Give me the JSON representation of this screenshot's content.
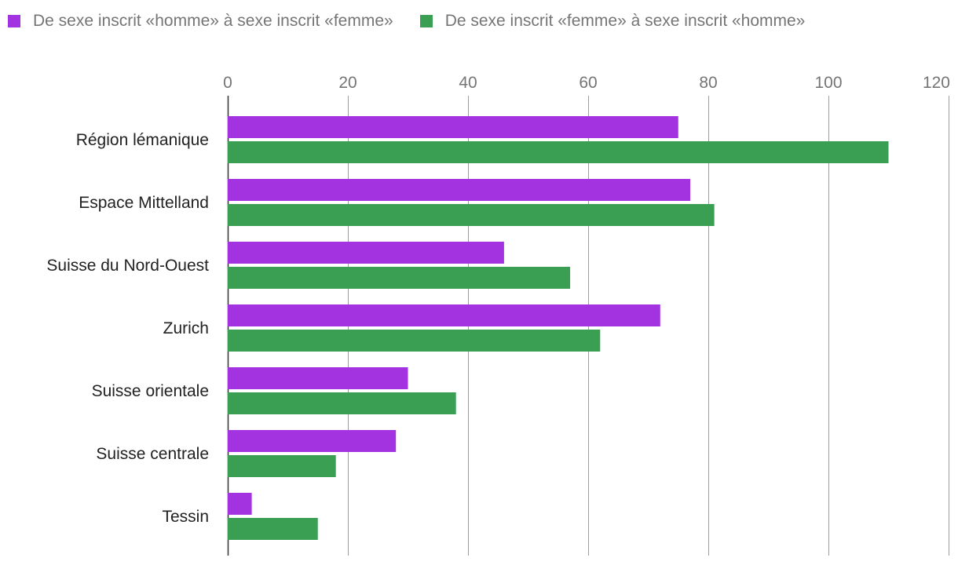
{
  "chart_data": {
    "type": "bar",
    "orientation": "horizontal",
    "categories": [
      "Région lémanique",
      "Espace Mittelland",
      "Suisse du Nord-Ouest",
      "Zurich",
      "Suisse orientale",
      "Suisse centrale",
      "Tessin"
    ],
    "series": [
      {
        "name": "De sexe inscrit «homme» à sexe inscrit «femme»",
        "color": "#a333e0",
        "values": [
          75,
          77,
          46,
          72,
          30,
          28,
          4
        ]
      },
      {
        "name": "De sexe inscrit «femme» à sexe inscrit «homme»",
        "color": "#3a9f52",
        "values": [
          110,
          81,
          57,
          62,
          38,
          18,
          15
        ]
      }
    ],
    "xlim": [
      0,
      120
    ],
    "xticks": [
      0,
      20,
      40,
      60,
      80,
      100,
      120
    ],
    "grid": true,
    "legend_position": "top-left"
  }
}
